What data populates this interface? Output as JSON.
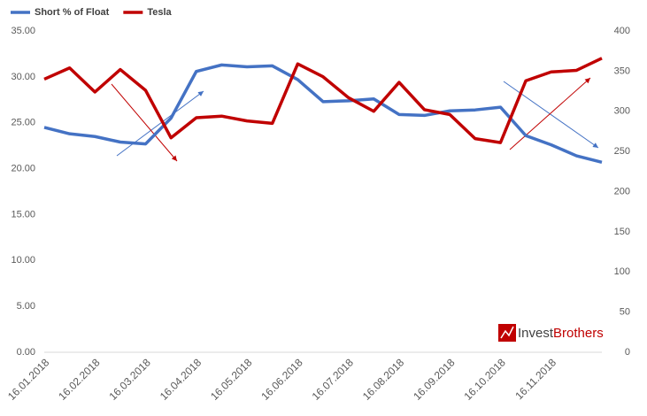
{
  "chart_data": {
    "type": "line",
    "categories": [
      "16.01.2018",
      null,
      "16.02.2018",
      null,
      "16.03.2018",
      null,
      "16.04.2018",
      null,
      "16.05.2018",
      null,
      "16.06.2018",
      null,
      "16.07.2018",
      null,
      "16.08.2018",
      null,
      "16.09.2018",
      null,
      "16.10.2018",
      null,
      "16.11.2018",
      null,
      null
    ],
    "series": [
      {
        "name": "Short % of Float",
        "color": "#4472c4",
        "values": [
          24.5,
          23.8,
          23.5,
          22.9,
          22.7,
          25.5,
          30.6,
          31.3,
          31.1,
          31.2,
          29.7,
          27.3,
          27.4,
          27.6,
          25.9,
          25.8,
          26.3,
          26.4,
          26.7,
          23.6,
          22.6,
          21.4,
          20.7
        ]
      },
      {
        "name": "Tesla",
        "color": "#c00000",
        "axis": "y2",
        "values": [
          340,
          354,
          324,
          352,
          326,
          267,
          292,
          294,
          288,
          285,
          359,
          343,
          317,
          300,
          336,
          302,
          296,
          266,
          261,
          338,
          349,
          351,
          366
        ]
      }
    ],
    "ylim": [
      0,
      35
    ],
    "yticks": [
      {
        "value": 0,
        "label": "0.00"
      },
      {
        "value": 5,
        "label": "5.00"
      },
      {
        "value": 10,
        "label": "10.00"
      },
      {
        "value": 15,
        "label": "15.00"
      },
      {
        "value": 20,
        "label": "20.00"
      },
      {
        "value": 25,
        "label": "25.00"
      },
      {
        "value": 30,
        "label": "30.00"
      },
      {
        "value": 35,
        "label": "35.00"
      }
    ],
    "y2lim": [
      0,
      400
    ],
    "y2ticks": [
      0,
      50,
      100,
      150,
      200,
      250,
      300,
      350,
      400
    ],
    "legend": "top-left",
    "grid": false,
    "logo": {
      "first": "Invest",
      "second": "Brothers"
    }
  }
}
